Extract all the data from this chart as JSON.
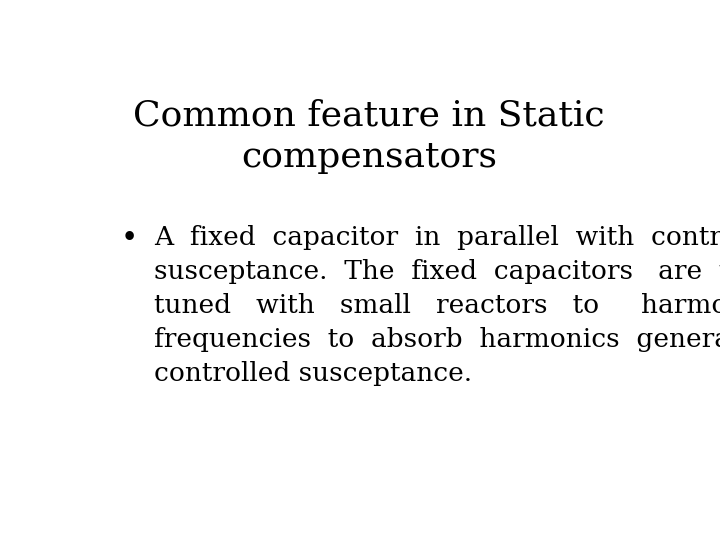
{
  "title_line1": "Common feature in Static",
  "title_line2": "compensators",
  "bullet_lines": [
    "A  fixed  capacitor  in  parallel  with  controlled",
    "susceptance.  The  fixed  capacitors   are  usually",
    "tuned   with   small   reactors   to     harmonic",
    "frequencies  to  absorb  harmonics  generated  by",
    "controlled susceptance."
  ],
  "background_color": "#ffffff",
  "text_color": "#000000",
  "title_fontsize": 26,
  "body_fontsize": 19,
  "font_family": "DejaVu Serif"
}
